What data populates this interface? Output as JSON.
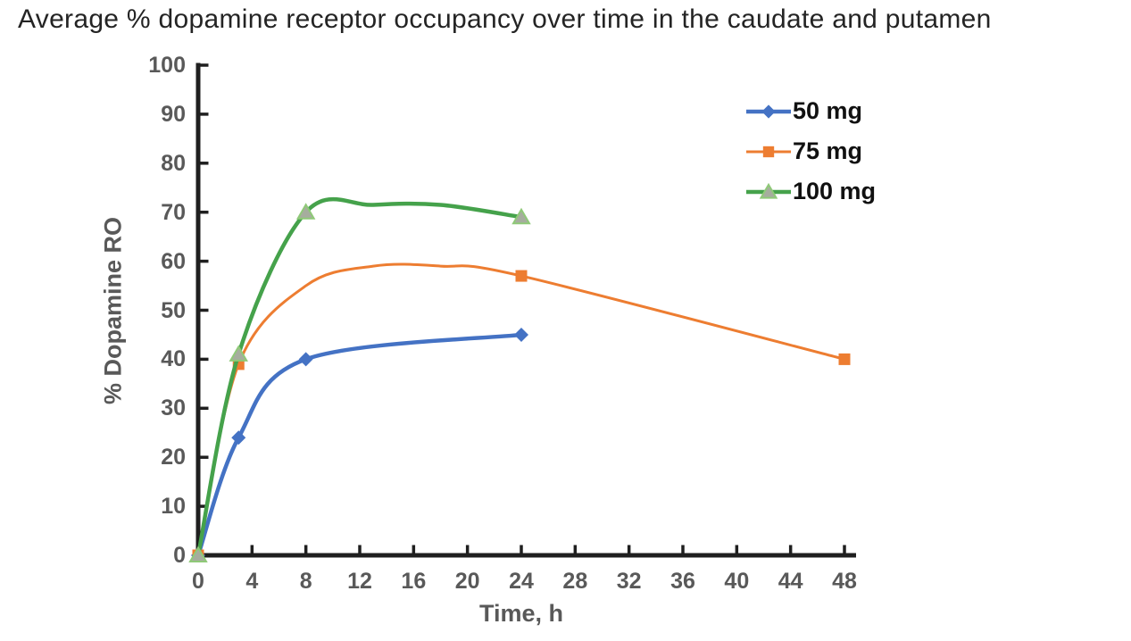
{
  "chart_data": {
    "type": "line",
    "title": "Average % dopamine receptor occupancy over time in the caudate and putamen",
    "xlabel": "Time, h",
    "ylabel": "% Dopamine RO",
    "xlim": [
      0,
      48
    ],
    "ylim": [
      0,
      100
    ],
    "x_ticks": [
      0,
      4,
      8,
      12,
      16,
      20,
      24,
      28,
      32,
      36,
      40,
      44,
      48
    ],
    "y_ticks": [
      0,
      10,
      20,
      30,
      40,
      50,
      60,
      70,
      80,
      90,
      100
    ],
    "grid": false,
    "legend_position": "top-right",
    "axis_color": "#1f1f1f",
    "tick_label_color": "#595959",
    "title_color": "#242424",
    "legend_text_color": "#111111",
    "series": [
      {
        "name": "50 mg",
        "color": "#4472C4",
        "line_width": 4.5,
        "marker": "diamond",
        "marker_fill": "#4472C4",
        "marker_stroke": "#4472C4",
        "points": [
          [
            0,
            0
          ],
          [
            3,
            24
          ],
          [
            8,
            40
          ],
          [
            24,
            45
          ]
        ],
        "curve_points": [
          [
            0,
            0
          ],
          [
            3,
            24
          ],
          [
            8,
            40
          ],
          [
            24,
            45
          ]
        ]
      },
      {
        "name": "75 mg",
        "color": "#ED7D31",
        "line_width": 3,
        "marker": "square",
        "marker_fill": "#ED7D31",
        "marker_stroke": "#ED7D31",
        "points": [
          [
            0,
            0
          ],
          [
            3,
            39
          ],
          [
            24,
            57
          ],
          [
            48,
            40
          ]
        ],
        "curve_points": [
          [
            0,
            0
          ],
          [
            3,
            39
          ],
          [
            8,
            55
          ],
          [
            13,
            59
          ],
          [
            18,
            59
          ],
          [
            24,
            57
          ],
          [
            48,
            40
          ]
        ]
      },
      {
        "name": "100 mg",
        "color": "#45A24B",
        "line_width": 4.5,
        "marker": "triangle",
        "marker_fill": "#A6AD9E",
        "marker_stroke": "#8FC978",
        "points": [
          [
            0,
            0
          ],
          [
            3,
            41
          ],
          [
            8,
            70
          ],
          [
            24,
            69
          ]
        ],
        "curve_points": [
          [
            0,
            0
          ],
          [
            3,
            41
          ],
          [
            8,
            70
          ],
          [
            13,
            71.5
          ],
          [
            18,
            71.5
          ],
          [
            24,
            69
          ]
        ]
      }
    ]
  }
}
